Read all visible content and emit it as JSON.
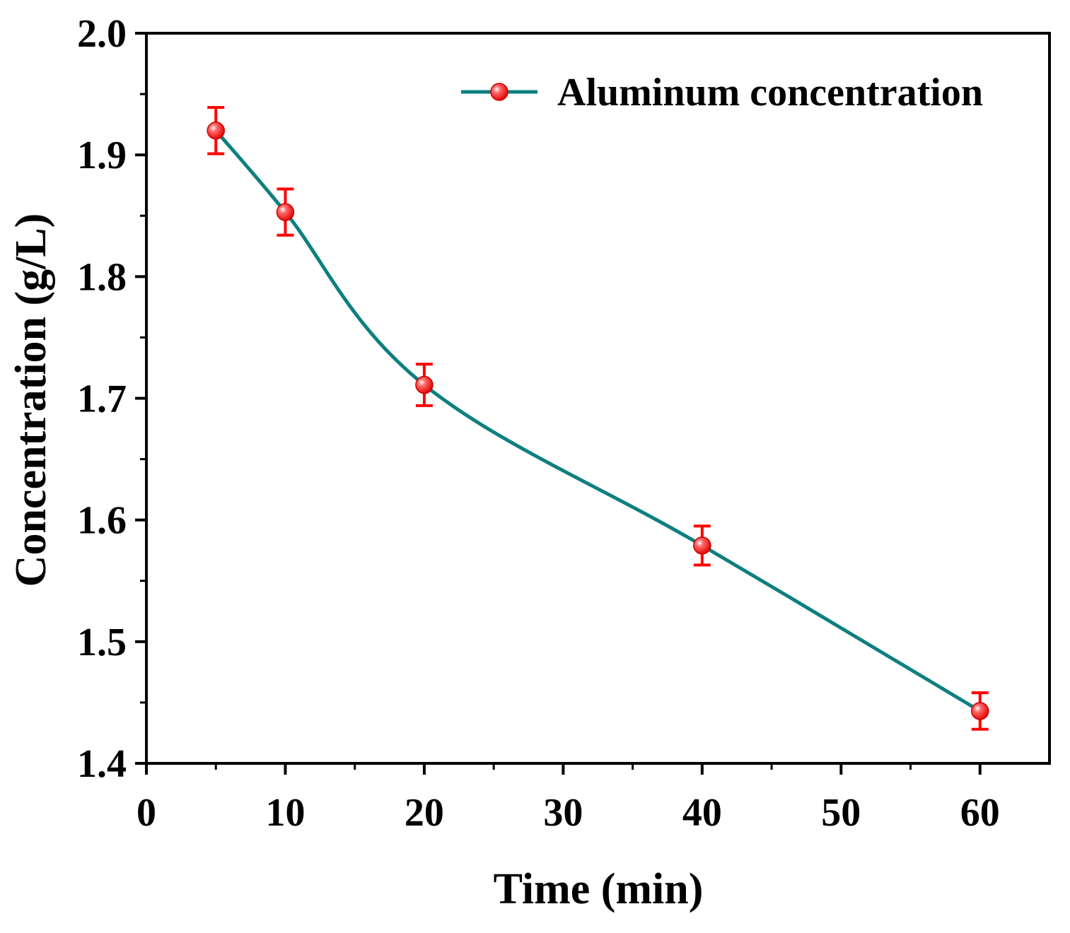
{
  "chart_data": {
    "type": "line",
    "title": "",
    "xlabel": "Time (min)",
    "ylabel": "Concentration (g/L)",
    "xlim": [
      0,
      65
    ],
    "ylim": [
      1.4,
      2.0
    ],
    "xticks": [
      "0",
      "10",
      "20",
      "30",
      "40",
      "50",
      "60"
    ],
    "yticks": [
      "1.4",
      "1.5",
      "1.6",
      "1.7",
      "1.8",
      "1.9",
      "2.0"
    ],
    "grid": false,
    "legend_position": "top-right",
    "series": [
      {
        "name": "Aluminum concentration",
        "x": [
          5,
          10,
          20,
          40,
          60
        ],
        "y": [
          1.92,
          1.853,
          1.711,
          1.579,
          1.443
        ],
        "error": [
          0.019,
          0.019,
          0.017,
          0.016,
          0.015
        ],
        "marker_color": "#ff0000",
        "line_color": "#0e7f7f",
        "smooth": true
      }
    ]
  }
}
